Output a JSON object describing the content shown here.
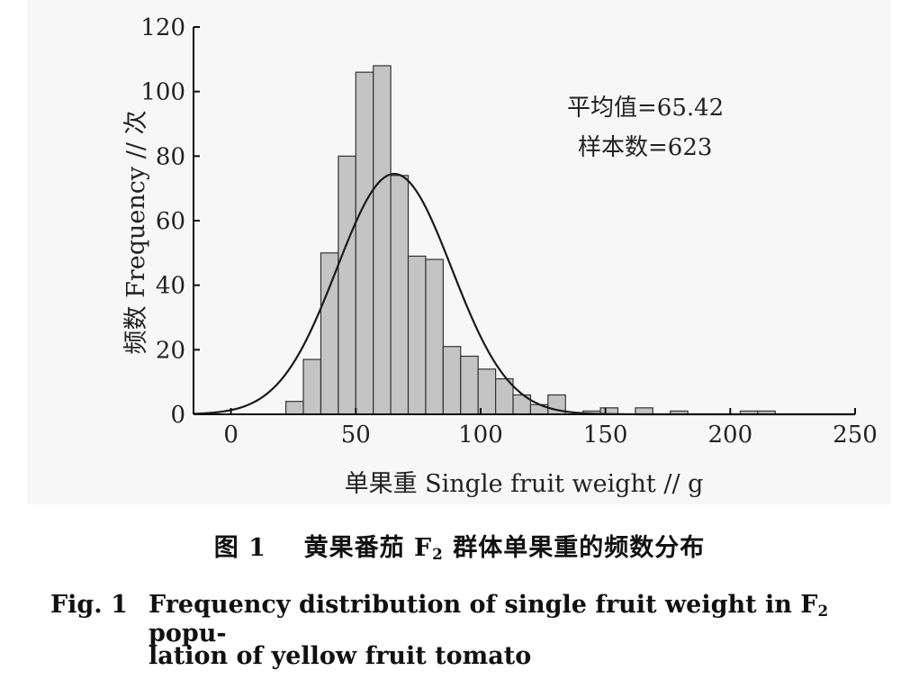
{
  "chart_data": {
    "type": "bar",
    "subtype": "histogram",
    "xlabel": "单果重 Single fruit weight // g",
    "ylabel": "频数 Frequency // 次",
    "xlim": [
      -15,
      250
    ],
    "ylim": [
      0,
      120
    ],
    "xticks": [
      0,
      50,
      100,
      150,
      200,
      250
    ],
    "yticks": [
      0,
      20,
      40,
      60,
      80,
      100,
      120
    ],
    "bin_width": 7,
    "bins": [
      {
        "start": 22,
        "value": 4
      },
      {
        "start": 29,
        "value": 17
      },
      {
        "start": 36,
        "value": 50
      },
      {
        "start": 43,
        "value": 80
      },
      {
        "start": 50,
        "value": 106
      },
      {
        "start": 57,
        "value": 108
      },
      {
        "start": 64,
        "value": 74
      },
      {
        "start": 71,
        "value": 49
      },
      {
        "start": 78,
        "value": 48
      },
      {
        "start": 85,
        "value": 21
      },
      {
        "start": 92,
        "value": 18
      },
      {
        "start": 99,
        "value": 14
      },
      {
        "start": 106,
        "value": 11
      },
      {
        "start": 113,
        "value": 6
      },
      {
        "start": 120,
        "value": 3
      },
      {
        "start": 127,
        "value": 6
      },
      {
        "start": 134,
        "value": 0
      },
      {
        "start": 141,
        "value": 1
      },
      {
        "start": 148,
        "value": 2
      },
      {
        "start": 155,
        "value": 0
      },
      {
        "start": 162,
        "value": 2
      },
      {
        "start": 169,
        "value": 0
      },
      {
        "start": 176,
        "value": 1
      },
      {
        "start": 183,
        "value": 0
      },
      {
        "start": 190,
        "value": 0
      },
      {
        "start": 197,
        "value": 0
      },
      {
        "start": 204,
        "value": 1
      },
      {
        "start": 211,
        "value": 1
      }
    ],
    "normal_curve": {
      "mean": 65.42,
      "sd": 23,
      "peak": 74.5,
      "x_from": -15,
      "x_to": 250
    },
    "annotations": [
      "平均值=65.42",
      "样本数=623"
    ],
    "colors": {
      "bar_fill": "#c4c4c4",
      "bar_stroke": "#333333",
      "curve": "#1a1a1a",
      "axis": "#111111"
    }
  },
  "caption": {
    "cn_prefix": "图 1",
    "cn_main": "黄果番茄 F",
    "cn_sub": "2",
    "cn_rest": " 群体单果重的频数分布",
    "en_label": "Fig. 1",
    "en_line1_a": "Frequency distribution of single fruit weight in F",
    "en_line1_sub": "2",
    "en_line1_b": " popu-",
    "en_line2": "lation of yellow fruit tomato"
  }
}
